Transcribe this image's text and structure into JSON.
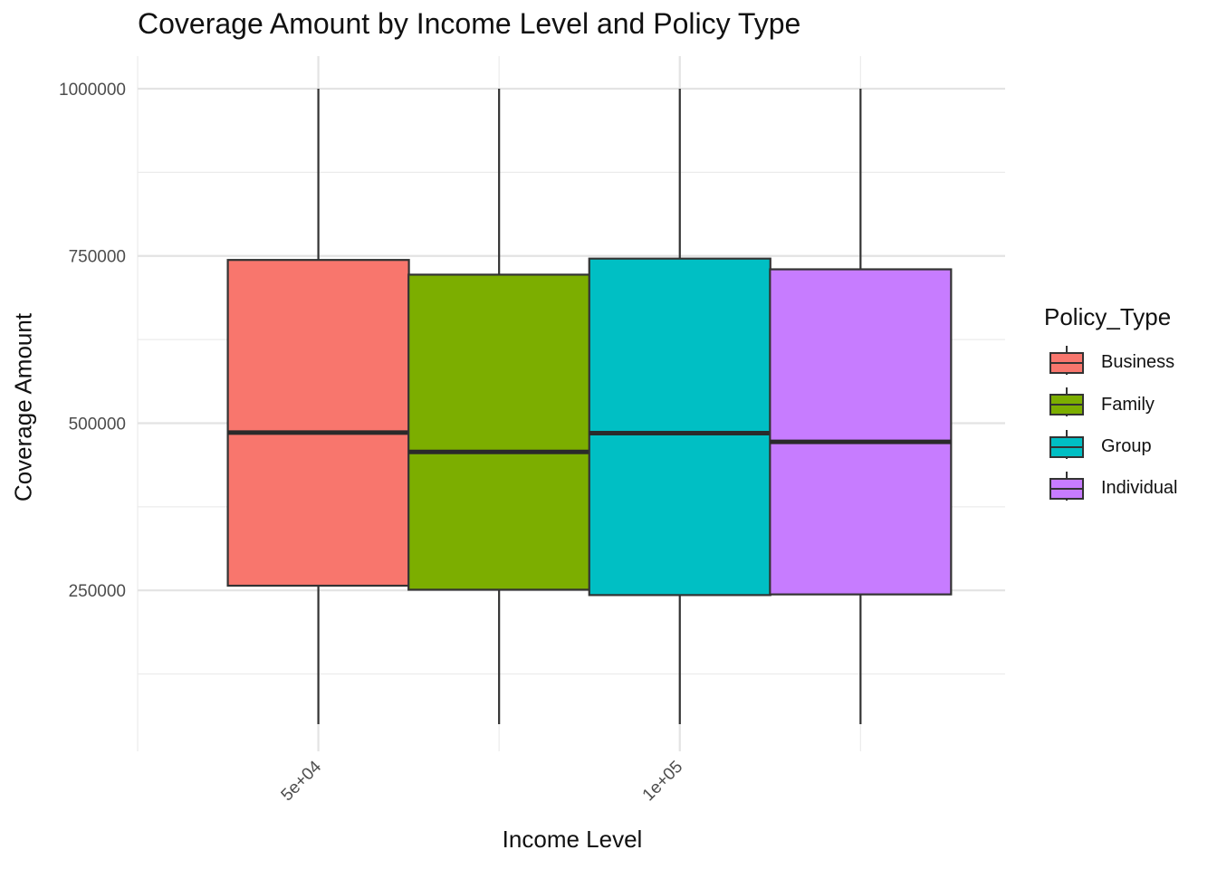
{
  "chart_data": {
    "type": "boxplot",
    "title": "Coverage Amount by Income Level and Policy Type",
    "xlabel": "Income Level",
    "ylabel": "Coverage Amount",
    "x_ticks": [
      {
        "label": "5e+04",
        "value": 50000
      },
      {
        "label": "1e+05",
        "value": 100000
      }
    ],
    "xlim": [
      25000,
      145000
    ],
    "y_ticks": [
      {
        "label": "250000",
        "value": 250000
      },
      {
        "label": "500000",
        "value": 500000
      },
      {
        "label": "750000",
        "value": 750000
      },
      {
        "label": "1000000",
        "value": 1000000
      }
    ],
    "ylim": [
      50000,
      1000000
    ],
    "legend": {
      "title": "Policy_Type",
      "entries": [
        {
          "name": "Business",
          "color": "#F8766D"
        },
        {
          "name": "Family",
          "color": "#7CAE00"
        },
        {
          "name": "Group",
          "color": "#00BFC4"
        },
        {
          "name": "Individual",
          "color": "#C77CFF"
        }
      ]
    },
    "series": [
      {
        "name": "Business",
        "x": 50000,
        "min": 50000,
        "q1": 257000,
        "median": 486000,
        "q3": 744000,
        "max": 1000000
      },
      {
        "name": "Family",
        "x": 75000,
        "min": 50000,
        "q1": 251000,
        "median": 457000,
        "q3": 722000,
        "max": 1000000
      },
      {
        "name": "Group",
        "x": 100000,
        "min": 50000,
        "q1": 243000,
        "median": 485000,
        "q3": 746000,
        "max": 1000000
      },
      {
        "name": "Individual",
        "x": 125000,
        "min": 50000,
        "q1": 244000,
        "median": 472000,
        "q3": 730000,
        "max": 1000000
      }
    ],
    "grid": true,
    "legend_position": "right"
  }
}
